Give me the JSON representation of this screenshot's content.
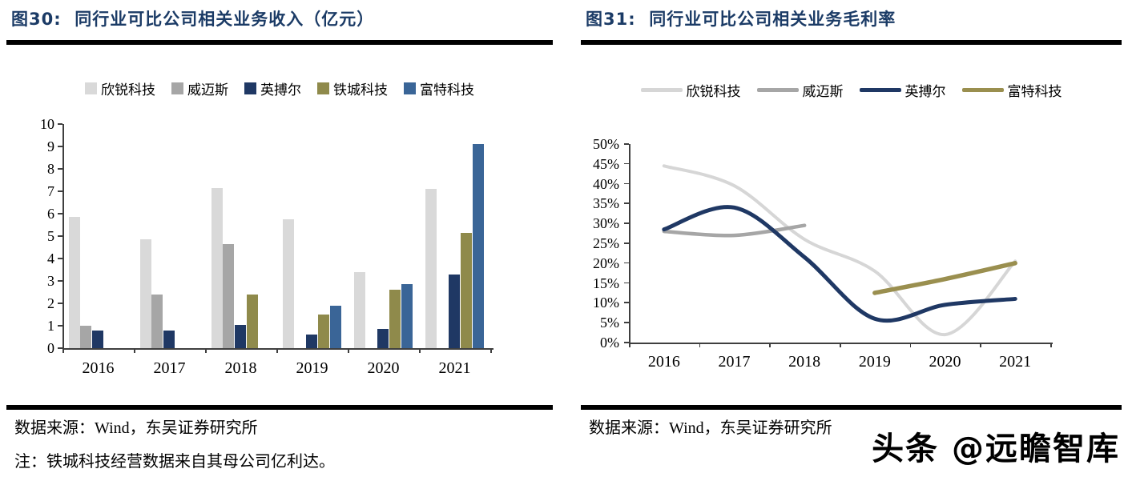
{
  "panels": {
    "left": {
      "title": "图30:  同行业可比公司相关业务收入（亿元）",
      "source": "数据来源：Wind，东吴证券研究所",
      "note": "注：铁城科技经营数据来自其母公司亿利达。"
    },
    "right": {
      "title": "图31:  同行业可比公司相关业务毛利率",
      "source": "数据来源：Wind，东吴证券研究所",
      "watermark": "头条 @远瞻智库"
    }
  },
  "chart_data": [
    {
      "type": "bar",
      "title": "同行业可比公司相关业务收入（亿元）",
      "categories": [
        "2016",
        "2017",
        "2018",
        "2019",
        "2020",
        "2021"
      ],
      "series": [
        {
          "name": "欣锐科技",
          "color": "#d9d9d9",
          "values": [
            5.85,
            4.85,
            7.15,
            5.75,
            3.4,
            7.1
          ]
        },
        {
          "name": "威迈斯",
          "color": "#a6a6a6",
          "values": [
            1.0,
            2.4,
            4.65,
            null,
            null,
            null
          ]
        },
        {
          "name": "英搏尔",
          "color": "#1f3864",
          "values": [
            0.8,
            0.8,
            1.05,
            0.6,
            0.85,
            3.3
          ]
        },
        {
          "name": "铁城科技",
          "color": "#8f8a4b",
          "values": [
            null,
            null,
            2.4,
            1.5,
            2.6,
            5.15
          ]
        },
        {
          "name": "富特科技",
          "color": "#3a6597",
          "values": [
            null,
            null,
            null,
            1.9,
            2.85,
            9.1
          ]
        }
      ],
      "ylim": [
        0,
        10
      ],
      "ytick_labels": [
        "0",
        "1",
        "2",
        "3",
        "4",
        "5",
        "6",
        "7",
        "8",
        "9",
        "10"
      ],
      "legend_position": "top",
      "grid": false
    },
    {
      "type": "line",
      "title": "同行业可比公司相关业务毛利率",
      "categories": [
        "2016",
        "2017",
        "2018",
        "2019",
        "2020",
        "2021"
      ],
      "series": [
        {
          "name": "欣锐科技",
          "color": "#d6d6d6",
          "stroke_width": 4,
          "values": [
            44.5,
            39.5,
            26,
            18,
            2,
            20.5
          ]
        },
        {
          "name": "威迈斯",
          "color": "#a6a6a6",
          "stroke_width": 4.5,
          "values": [
            28,
            27,
            29.5,
            null,
            null,
            null
          ]
        },
        {
          "name": "英搏尔",
          "color": "#1f3864",
          "stroke_width": 5,
          "values": [
            28.5,
            34,
            21.5,
            6,
            9.5,
            11
          ]
        },
        {
          "name": "富特科技",
          "color": "#9a8f4f",
          "stroke_width": 5.5,
          "values": [
            null,
            null,
            null,
            12.5,
            16,
            20
          ]
        }
      ],
      "ylim": [
        0,
        50
      ],
      "ytick_labels": [
        "0%",
        "5%",
        "10%",
        "15%",
        "20%",
        "25%",
        "30%",
        "35%",
        "40%",
        "45%",
        "50%"
      ],
      "legend_position": "top",
      "grid": false
    }
  ]
}
